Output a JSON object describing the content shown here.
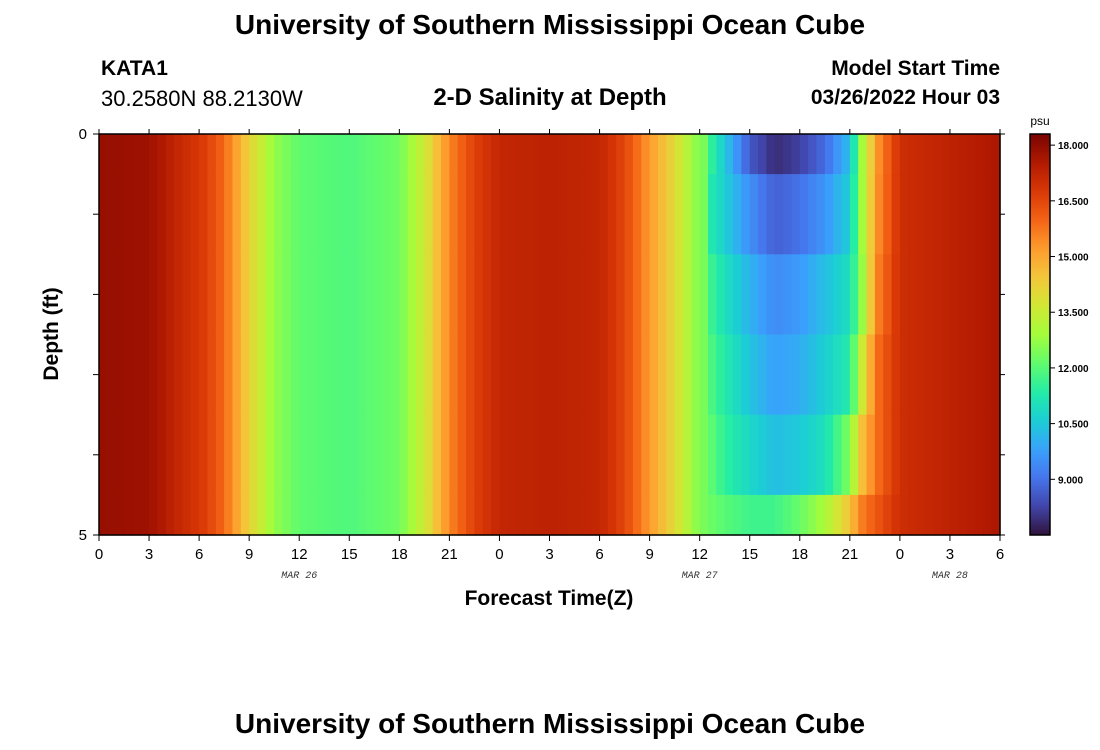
{
  "header": {
    "main_title": "University of Southern Mississippi Ocean Cube",
    "station": "KATA1",
    "coordinates": "30.2580N  88.2130W",
    "plot_title": "2-D Salinity at Depth",
    "start_label": "Model Start Time",
    "start_value": "03/26/2022 Hour 03"
  },
  "footer": {
    "title": "University of Southern Mississippi Ocean Cube"
  },
  "colors": {
    "colormap": [
      "#30123b",
      "#4145ab",
      "#4675ed",
      "#39a2fc",
      "#1bcfd4",
      "#24eca6",
      "#61fc6c",
      "#a4fc3b",
      "#d1e834",
      "#f3c63a",
      "#fe9b2d",
      "#f36315",
      "#d93806",
      "#b11901",
      "#7a0402"
    ]
  },
  "chart_data": {
    "type": "heatmap",
    "xlabel": "Forecast Time(Z)",
    "ylabel": "Depth (ft)",
    "x_tick_labels": [
      "0",
      "3",
      "6",
      "9",
      "12",
      "15",
      "18",
      "21",
      "0",
      "3",
      "6",
      "9",
      "12",
      "15",
      "18",
      "21",
      "0",
      "3",
      "6"
    ],
    "x_range_hours": [
      0,
      54
    ],
    "date_labels": [
      {
        "label": "MAR 26",
        "hour": 12
      },
      {
        "label": "MAR 27",
        "hour": 36
      },
      {
        "label": "MAR 28",
        "hour": 51
      }
    ],
    "y_tick_labels": [
      "0",
      "5"
    ],
    "y_range_ft": [
      0,
      5
    ],
    "colorbar": {
      "unit": "psu",
      "range": [
        7.5,
        18.3
      ],
      "tick_labels": [
        "18.000",
        "16.500",
        "15.000",
        "13.500",
        "12.000",
        "10.500",
        "9.000"
      ],
      "tick_values": [
        18.0,
        16.5,
        15.0,
        13.5,
        12.0,
        10.5,
        9.0
      ]
    },
    "depth_layers_ft": [
      0,
      0.5,
      1.5,
      2.5,
      3.5,
      4.5
    ],
    "salinity_profile": [
      {
        "hour": 0,
        "s": 17.9
      },
      {
        "hour": 3,
        "s": 17.8
      },
      {
        "hour": 5,
        "s": 17.1
      },
      {
        "hour": 6.5,
        "s": 16.6
      },
      {
        "hour": 7.5,
        "s": 15.9
      },
      {
        "hour": 9,
        "s": 14.2
      },
      {
        "hour": 10.5,
        "s": 12.7
      },
      {
        "hour": 12,
        "s": 12.1
      },
      {
        "hour": 15,
        "s": 11.9
      },
      {
        "hour": 18,
        "s": 12.3
      },
      {
        "hour": 19.5,
        "s": 13.6
      },
      {
        "hour": 21,
        "s": 15.5
      },
      {
        "hour": 22.5,
        "s": 16.6
      },
      {
        "hour": 24,
        "s": 17.2
      },
      {
        "hour": 27,
        "s": 17.3
      },
      {
        "hour": 30,
        "s": 17.2
      },
      {
        "hour": 31.5,
        "s": 16.5
      },
      {
        "hour": 33,
        "s": 15.2
      },
      {
        "hour": 34.5,
        "s": 14.0
      },
      {
        "hour": 36,
        "s": 12.4
      }
    ],
    "low_salinity_event": [
      {
        "hour": 36.5,
        "s": [
          11.8,
          11.4,
          11.8,
          12.0,
          12.2,
          12.3
        ]
      },
      {
        "hour": 37.5,
        "s": [
          10.5,
          10.6,
          11.0,
          11.3,
          11.5,
          12.0
        ]
      },
      {
        "hour": 39,
        "s": [
          8.6,
          9.5,
          10.1,
          10.4,
          10.8,
          11.7
        ]
      },
      {
        "hour": 40.5,
        "s": [
          7.9,
          8.7,
          9.4,
          9.8,
          10.3,
          11.7
        ]
      },
      {
        "hour": 42,
        "s": [
          8.2,
          9.0,
          9.7,
          10.0,
          10.5,
          12.2
        ]
      },
      {
        "hour": 43.5,
        "s": [
          8.9,
          9.6,
          10.3,
          10.6,
          11.0,
          13.0
        ]
      },
      {
        "hour": 45,
        "s": [
          10.3,
          10.6,
          11.0,
          11.3,
          12.5,
          14.5
        ]
      },
      {
        "hour": 45.7,
        "s": [
          12.8,
          12.8,
          12.6,
          13.5,
          14.5,
          15.6
        ]
      },
      {
        "hour": 46.6,
        "s": [
          15.2,
          15.3,
          15.5,
          15.8,
          15.8,
          16.2
        ]
      },
      {
        "hour": 48,
        "s": [
          17.0,
          17.0,
          17.0,
          17.0,
          17.0,
          17.0
        ]
      },
      {
        "hour": 51,
        "s": [
          17.3,
          17.3,
          17.3,
          17.3,
          17.3,
          17.3
        ]
      },
      {
        "hour": 54,
        "s": [
          17.6,
          17.6,
          17.6,
          17.6,
          17.6,
          17.6
        ]
      }
    ]
  }
}
